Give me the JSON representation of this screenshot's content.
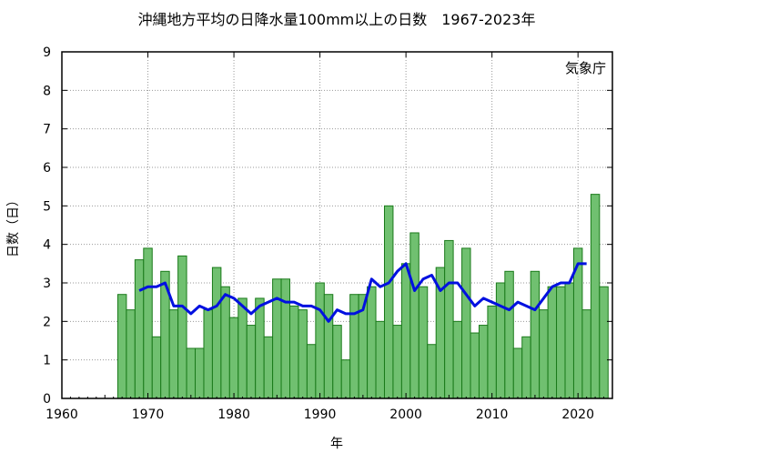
{
  "chart_data": {
    "type": "bar",
    "title": "沖縄地方平均の日降水量100mm以上の日数　1967-2023年",
    "credit": "気象庁",
    "xlabel": "年",
    "ylabel": "日数（日）",
    "xlim": [
      1960,
      2024
    ],
    "ylim": [
      0,
      9
    ],
    "xticks": [
      1960,
      1970,
      1980,
      1990,
      2000,
      2010,
      2020
    ],
    "yticks": [
      0,
      1,
      2,
      3,
      4,
      5,
      6,
      7,
      8,
      9
    ],
    "grid": true,
    "colors": {
      "bar_fill": "#70c070",
      "bar_stroke": "#1a7a1a",
      "line": "#0010e0",
      "grid": "#999999"
    },
    "series": [
      {
        "type": "bar",
        "x": [
          1967,
          1968,
          1969,
          1970,
          1971,
          1972,
          1973,
          1974,
          1975,
          1976,
          1977,
          1978,
          1979,
          1980,
          1981,
          1982,
          1983,
          1984,
          1985,
          1986,
          1987,
          1988,
          1989,
          1990,
          1991,
          1992,
          1993,
          1994,
          1995,
          1996,
          1997,
          1998,
          1999,
          2000,
          2001,
          2002,
          2003,
          2004,
          2005,
          2006,
          2007,
          2008,
          2009,
          2010,
          2011,
          2012,
          2013,
          2014,
          2015,
          2016,
          2017,
          2018,
          2019,
          2020,
          2021,
          2022,
          2023
        ],
        "values": [
          2.7,
          2.3,
          3.6,
          3.9,
          1.6,
          3.3,
          2.3,
          3.7,
          1.3,
          1.3,
          2.3,
          3.4,
          2.9,
          2.1,
          2.6,
          1.9,
          2.6,
          1.6,
          3.1,
          3.1,
          2.4,
          2.3,
          1.4,
          3.0,
          2.7,
          1.9,
          1.0,
          2.7,
          2.7,
          2.9,
          2.0,
          5.0,
          1.9,
          3.5,
          4.3,
          2.9,
          1.4,
          3.4,
          4.1,
          2.0,
          3.9,
          1.7,
          1.9,
          2.4,
          3.0,
          3.3,
          1.3,
          1.6,
          3.3,
          2.3,
          2.9,
          2.9,
          3.0,
          3.9,
          2.3,
          5.3,
          2.9
        ]
      },
      {
        "type": "line",
        "x": [
          1969,
          1970,
          1971,
          1972,
          1973,
          1974,
          1975,
          1976,
          1977,
          1978,
          1979,
          1980,
          1981,
          1982,
          1983,
          1984,
          1985,
          1986,
          1987,
          1988,
          1989,
          1990,
          1991,
          1992,
          1993,
          1994,
          1995,
          1996,
          1997,
          1998,
          1999,
          2000,
          2001,
          2002,
          2003,
          2004,
          2005,
          2006,
          2007,
          2008,
          2009,
          2010,
          2011,
          2012,
          2013,
          2014,
          2015,
          2016,
          2017,
          2018,
          2019,
          2020,
          2021
        ],
        "values": [
          2.8,
          2.9,
          2.9,
          3.0,
          2.4,
          2.4,
          2.2,
          2.4,
          2.3,
          2.4,
          2.7,
          2.6,
          2.4,
          2.2,
          2.4,
          2.5,
          2.6,
          2.5,
          2.5,
          2.4,
          2.4,
          2.3,
          2.0,
          2.3,
          2.2,
          2.2,
          2.3,
          3.1,
          2.9,
          3.0,
          3.3,
          3.5,
          2.8,
          3.1,
          3.2,
          2.8,
          3.0,
          3.0,
          2.7,
          2.4,
          2.6,
          2.5,
          2.4,
          2.3,
          2.5,
          2.4,
          2.3,
          2.6,
          2.9,
          3.0,
          3.0,
          3.5,
          3.5
        ]
      }
    ]
  }
}
